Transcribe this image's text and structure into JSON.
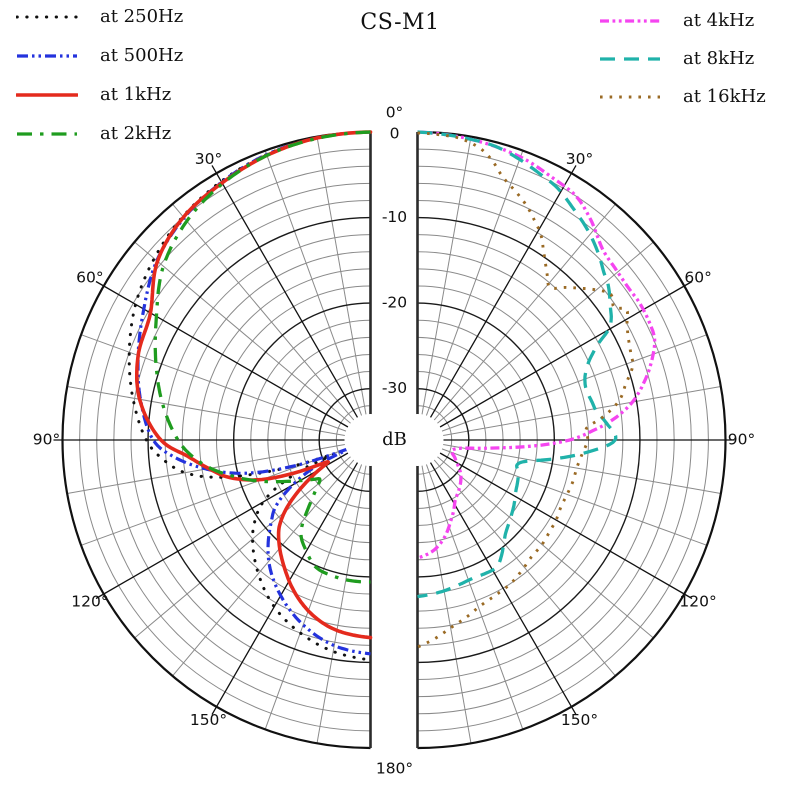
{
  "title": "CS-M1",
  "chart_data": {
    "type": "polar_half_pair",
    "title": "CS-M1",
    "r_axis": {
      "unit": "dB",
      "max": 0,
      "min": -36,
      "minor_step": 2,
      "major_step": 10,
      "tick_values": [
        0,
        -10,
        -20,
        -30
      ],
      "tick_labels": [
        "0",
        "-10",
        "-20",
        "-30"
      ]
    },
    "angle_axis": {
      "minor_step_deg": 10,
      "major_step_deg": 30,
      "major_angles": [
        30,
        60,
        90,
        120,
        150
      ],
      "labels": [
        "30°",
        "60°",
        "90°",
        "120°",
        "150°"
      ],
      "top_label": "0°",
      "bottom_label": "180°"
    },
    "grid": {
      "minor_color": "#8a8a8a",
      "major_color": "#1a1a1a",
      "spine_color": "#2b2b2b"
    },
    "legend_position": {
      "left_half": "top-left",
      "right_half": "top-right"
    },
    "series_left": [
      {
        "label": "at 250Hz",
        "color": "#111111",
        "width": 3,
        "dash": "0.3 9.5",
        "cap": "round",
        "points": [
          [
            0,
            0
          ],
          [
            10,
            -0.15
          ],
          [
            20,
            -0.5
          ],
          [
            30,
            -1.1
          ],
          [
            40,
            -1.9
          ],
          [
            50,
            -3
          ],
          [
            60,
            -4.3
          ],
          [
            70,
            -6
          ],
          [
            80,
            -7.8
          ],
          [
            90,
            -9.8
          ],
          [
            95,
            -11.5
          ],
          [
            100,
            -14
          ],
          [
            104,
            -18
          ],
          [
            108,
            -25
          ],
          [
            111,
            -31.5
          ],
          [
            113,
            -28
          ],
          [
            116,
            -24.5
          ],
          [
            120,
            -21.5
          ],
          [
            125,
            -19.5
          ],
          [
            130,
            -18
          ],
          [
            140,
            -15.6
          ],
          [
            150,
            -13.5
          ],
          [
            160,
            -12
          ],
          [
            170,
            -10.9
          ],
          [
            180,
            -10.3
          ]
        ]
      },
      {
        "label": "at 500Hz",
        "color": "#2433dd",
        "width": 3.2,
        "dash": "11 4 2.5 4 2.5 4",
        "cap": "butt",
        "points": [
          [
            0,
            0
          ],
          [
            10,
            -0.15
          ],
          [
            20,
            -0.5
          ],
          [
            30,
            -1.2
          ],
          [
            40,
            -2.1
          ],
          [
            50,
            -3.4
          ],
          [
            60,
            -5.4
          ],
          [
            70,
            -7.1
          ],
          [
            80,
            -8.7
          ],
          [
            90,
            -10.6
          ],
          [
            95,
            -13
          ],
          [
            100,
            -16.5
          ],
          [
            105,
            -21
          ],
          [
            109,
            -27
          ],
          [
            112,
            -33.5
          ],
          [
            115,
            -29.5
          ],
          [
            120,
            -25.5
          ],
          [
            125,
            -22.5
          ],
          [
            130,
            -20.8
          ],
          [
            140,
            -17.5
          ],
          [
            150,
            -15
          ],
          [
            160,
            -13
          ],
          [
            170,
            -11.6
          ],
          [
            180,
            -11
          ]
        ]
      },
      {
        "label": "at 1kHz",
        "color": "#e42a1d",
        "width": 3.6,
        "dash": "",
        "cap": "round",
        "points": [
          [
            0,
            0
          ],
          [
            10,
            -0.15
          ],
          [
            20,
            -0.6
          ],
          [
            30,
            -1.3
          ],
          [
            40,
            -2
          ],
          [
            50,
            -3.5
          ],
          [
            60,
            -6.3
          ],
          [
            70,
            -7.1
          ],
          [
            80,
            -8.6
          ],
          [
            90,
            -11.5
          ],
          [
            95,
            -14.5
          ],
          [
            100,
            -16.8
          ],
          [
            105,
            -19
          ],
          [
            110,
            -22.5
          ],
          [
            114,
            -27
          ],
          [
            117,
            -30.4
          ],
          [
            121,
            -28.5
          ],
          [
            128,
            -24
          ],
          [
            133,
            -21.5
          ],
          [
            138,
            -20
          ],
          [
            146,
            -18
          ],
          [
            154,
            -16
          ],
          [
            162,
            -14.4
          ],
          [
            170,
            -13.4
          ],
          [
            180,
            -12.9
          ]
        ]
      },
      {
        "label": "at 2kHz",
        "color": "#1f9c1f",
        "width": 3.3,
        "dash": "15 8 3.5 8",
        "cap": "butt",
        "points": [
          [
            0,
            0
          ],
          [
            10,
            -0.2
          ],
          [
            20,
            -0.6
          ],
          [
            30,
            -1.4
          ],
          [
            40,
            -2.6
          ],
          [
            50,
            -4.4
          ],
          [
            60,
            -7.1
          ],
          [
            70,
            -9.3
          ],
          [
            80,
            -11.3
          ],
          [
            90,
            -13.5
          ],
          [
            95,
            -15
          ],
          [
            100,
            -17
          ],
          [
            105,
            -19.5
          ],
          [
            110,
            -22
          ],
          [
            115,
            -24.5
          ],
          [
            120,
            -26.5
          ],
          [
            125,
            -28
          ],
          [
            128,
            -28.5
          ],
          [
            132,
            -27.5
          ],
          [
            137,
            -25.5
          ],
          [
            143,
            -22.5
          ],
          [
            150,
            -21
          ],
          [
            157,
            -19.8
          ],
          [
            165,
            -19.5
          ],
          [
            172,
            -19.4
          ],
          [
            180,
            -19.4
          ]
        ]
      }
    ],
    "series_right": [
      {
        "label": "at 4kHz",
        "color": "#f545f0",
        "width": 3.3,
        "dash": "9 3.5 2.8 3.5 2.8 3.5",
        "cap": "butt",
        "points": [
          [
            0,
            0
          ],
          [
            10,
            -0.3
          ],
          [
            20,
            -0.8
          ],
          [
            27,
            -1.5
          ],
          [
            33,
            -2
          ],
          [
            38,
            -3.2
          ],
          [
            44,
            -4.9
          ],
          [
            49,
            -5.4
          ],
          [
            54,
            -5.6
          ],
          [
            58,
            -5.5
          ],
          [
            63,
            -5.6
          ],
          [
            67,
            -5.9
          ],
          [
            71,
            -7
          ],
          [
            75,
            -8.4
          ],
          [
            80,
            -10.5
          ],
          [
            84,
            -13
          ],
          [
            87,
            -15.5
          ],
          [
            90,
            -18.2
          ],
          [
            93,
            -22.5
          ],
          [
            96,
            -27
          ],
          [
            100,
            -30.5
          ],
          [
            105,
            -31.7
          ],
          [
            110,
            -31.7
          ],
          [
            115,
            -31.2
          ],
          [
            120,
            -30.7
          ],
          [
            128,
            -29.6
          ],
          [
            136,
            -28.8
          ],
          [
            144,
            -28.1
          ],
          [
            148,
            -27.7
          ],
          [
            153,
            -26.7
          ],
          [
            158,
            -25.7
          ],
          [
            164,
            -24.3
          ],
          [
            170,
            -23.2
          ],
          [
            175,
            -22.6
          ],
          [
            180,
            -22.2
          ]
        ]
      },
      {
        "label": "at 8kHz",
        "color": "#20b2aa",
        "width": 3.3,
        "dash": "15 9",
        "cap": "butt",
        "points": [
          [
            0,
            0
          ],
          [
            10,
            -0.3
          ],
          [
            15,
            -0.5
          ],
          [
            20,
            -1.1
          ],
          [
            25,
            -1.8
          ],
          [
            29,
            -2.3
          ],
          [
            34,
            -3.4
          ],
          [
            39,
            -4.4
          ],
          [
            44,
            -5.6
          ],
          [
            48,
            -6.7
          ],
          [
            51,
            -7.3
          ],
          [
            55,
            -8.5
          ],
          [
            58,
            -9.3
          ],
          [
            60,
            -10.2
          ],
          [
            62,
            -12.1
          ],
          [
            65,
            -13.8
          ],
          [
            68,
            -14.8
          ],
          [
            71,
            -15.3
          ],
          [
            74,
            -15.4
          ],
          [
            78,
            -15.1
          ],
          [
            81,
            -14.8
          ],
          [
            85,
            -13.8
          ],
          [
            90,
            -12.9
          ],
          [
            94,
            -16
          ],
          [
            98,
            -20
          ],
          [
            101,
            -23
          ],
          [
            104,
            -24
          ],
          [
            108,
            -23.6
          ],
          [
            113,
            -23.3
          ],
          [
            118,
            -23
          ],
          [
            124,
            -22.4
          ],
          [
            130,
            -21.8
          ],
          [
            136,
            -21.1
          ],
          [
            140,
            -20.3
          ],
          [
            144,
            -19.3
          ],
          [
            148,
            -18.5
          ],
          [
            153,
            -18.5
          ],
          [
            158,
            -18.6
          ],
          [
            164,
            -18.4
          ],
          [
            170,
            -18.1
          ],
          [
            175,
            -17.9
          ],
          [
            180,
            -17.7
          ]
        ]
      },
      {
        "label": "at 16kHz",
        "color": "#9a6a24",
        "width": 2.9,
        "dash": "2.6 7",
        "cap": "butt",
        "points": [
          [
            0,
            -0.1
          ],
          [
            5,
            -0.25
          ],
          [
            8,
            -0.4
          ],
          [
            12,
            -1.1
          ],
          [
            15,
            -2.2
          ],
          [
            18,
            -3.7
          ],
          [
            22,
            -4.9
          ],
          [
            25,
            -5.8
          ],
          [
            28,
            -6.9
          ],
          [
            31,
            -8
          ],
          [
            34,
            -9.6
          ],
          [
            38,
            -11.4
          ],
          [
            41,
            -12.4
          ],
          [
            44,
            -11.2
          ],
          [
            47,
            -10
          ],
          [
            50,
            -8.7
          ],
          [
            53,
            -7.7
          ],
          [
            56,
            -8.3
          ],
          [
            58,
            -7.2
          ],
          [
            61,
            -8
          ],
          [
            64,
            -8.6
          ],
          [
            68,
            -9.1
          ],
          [
            71,
            -9.4
          ],
          [
            75,
            -10.8
          ],
          [
            79,
            -12
          ],
          [
            83,
            -14.2
          ],
          [
            86,
            -16.2
          ],
          [
            90,
            -16.1
          ],
          [
            95,
            -16.7
          ],
          [
            100,
            -17.1
          ],
          [
            105,
            -17.2
          ],
          [
            110,
            -17.4
          ],
          [
            115,
            -17.5
          ],
          [
            120,
            -17.3
          ],
          [
            125,
            -17.2
          ],
          [
            130,
            -17
          ],
          [
            136,
            -16.9
          ],
          [
            141,
            -16.5
          ],
          [
            147,
            -16
          ],
          [
            153,
            -15.7
          ],
          [
            159,
            -15.3
          ],
          [
            164,
            -14.6
          ],
          [
            170,
            -13.7
          ],
          [
            175,
            -12.7
          ],
          [
            180,
            -11.8
          ]
        ]
      }
    ]
  }
}
